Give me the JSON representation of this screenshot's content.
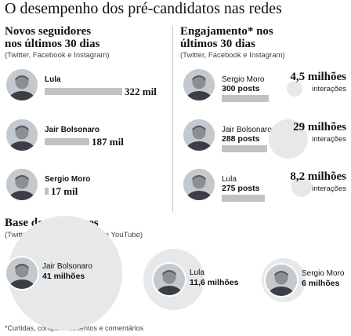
{
  "header": {
    "title": "O desempenho dos pré-candidatos nas redes"
  },
  "colors": {
    "bar": "#bfc3c6",
    "circle": "#e6e8e9",
    "divider": "#c9c9c9"
  },
  "chart_data": [
    {
      "type": "bar",
      "title": "Novos seguidores nos últimos 30 dias",
      "title_lines": [
        "Novos seguidores",
        "nos últimos 30 dias"
      ],
      "subtitle": "(Twitter, Facebook e Instagram)",
      "categories": [
        "Lula",
        "Jair Bolsonaro",
        "Sergio Moro"
      ],
      "values": [
        322,
        187,
        17
      ],
      "value_labels": [
        "322 mil",
        "187 mil",
        "17 mil"
      ],
      "unit": "mil"
    },
    {
      "type": "bar",
      "title": "Engajamento* nos últimos 30 dias",
      "title_lines": [
        "Engajamento* nos",
        "últimos 30 dias"
      ],
      "subtitle": "(Twitter, Facebook e Instagram)",
      "categories": [
        "Sergio Moro",
        "Jair Bolsonaro",
        "Lula"
      ],
      "series": [
        {
          "name": "posts",
          "values": [
            300,
            288,
            275
          ],
          "labels": [
            "300 posts",
            "288 posts",
            "275 posts"
          ]
        },
        {
          "name": "interações",
          "values": [
            4.5,
            29,
            8.2
          ],
          "labels": [
            "4,5 milhões",
            "29 milhões",
            "8,2 milhões"
          ]
        }
      ],
      "secondary_label": "interações"
    },
    {
      "type": "bubble",
      "title": "Base de seguidores",
      "subtitle": "(Twitter, Facebook, Instagram e YouTube)",
      "categories": [
        "Jair Bolsonaro",
        "Lula",
        "Sergio Moro"
      ],
      "values": [
        41,
        11.6,
        6
      ],
      "value_labels": [
        "41 milhões",
        "11,6 milhões",
        "6 milhões"
      ],
      "unit": "milhões"
    }
  ],
  "footnote": "*Curtidas, compartilhamentos e comentários"
}
